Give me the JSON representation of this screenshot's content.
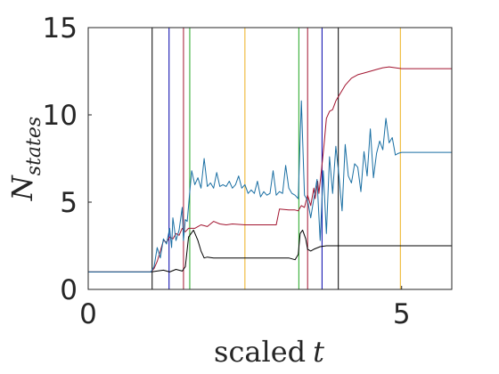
{
  "chart_data": {
    "type": "line",
    "title": "",
    "xlabel": "scaled t",
    "xlabel_parts": {
      "text": "scaled",
      "symbol": "t"
    },
    "ylabel": "N_states",
    "ylabel_parts": {
      "symbol": "N",
      "subscript": "states"
    },
    "xlim": [
      0,
      5.8
    ],
    "ylim": [
      0,
      15
    ],
    "xticks": [
      0,
      5
    ],
    "xtick_labels": [
      "0",
      "5"
    ],
    "yticks": [
      0,
      5,
      10,
      15
    ],
    "ytick_labels": [
      "0",
      "5",
      "10",
      "15"
    ],
    "grid": false,
    "legend": "none",
    "vertical_lines": [
      {
        "x": 1.02,
        "color": "#000000"
      },
      {
        "x": 1.29,
        "color": "#0000aa"
      },
      {
        "x": 1.52,
        "color": "#a2142f"
      },
      {
        "x": 1.62,
        "color": "#21a521"
      },
      {
        "x": 2.5,
        "color": "#edb120"
      },
      {
        "x": 3.36,
        "color": "#21a521"
      },
      {
        "x": 3.5,
        "color": "#a2142f"
      },
      {
        "x": 3.73,
        "color": "#0000aa"
      },
      {
        "x": 3.99,
        "color": "#000000"
      },
      {
        "x": 4.98,
        "color": "#edb120"
      }
    ],
    "series": [
      {
        "color": "#000000",
        "x": [
          0,
          1.0,
          1.1,
          1.2,
          1.3,
          1.4,
          1.5,
          1.55,
          1.6,
          1.68,
          1.75,
          1.8,
          1.85,
          1.9,
          2.0,
          2.5,
          3.0,
          3.2,
          3.3,
          3.35,
          3.38,
          3.42,
          3.47,
          3.5,
          3.55,
          3.6,
          3.7,
          3.8,
          3.9,
          4.0,
          4.5,
          5.0,
          5.8
        ],
        "y": [
          1,
          1,
          1.05,
          1.1,
          1.0,
          1.15,
          1.05,
          1.3,
          3.0,
          3.4,
          2.8,
          2.2,
          1.8,
          1.85,
          1.8,
          1.8,
          1.8,
          1.8,
          1.7,
          2.0,
          3.2,
          3.4,
          2.9,
          2.3,
          2.2,
          2.3,
          2.45,
          2.5,
          2.5,
          2.5,
          2.5,
          2.5,
          2.5
        ]
      },
      {
        "color": "#a2142f",
        "x": [
          0,
          1.0,
          1.05,
          1.1,
          1.15,
          1.2,
          1.25,
          1.3,
          1.35,
          1.4,
          1.45,
          1.5,
          1.55,
          1.6,
          1.7,
          1.8,
          1.9,
          2.0,
          2.1,
          2.2,
          2.3,
          2.5,
          2.7,
          2.9,
          3.0,
          3.05,
          3.2,
          3.3,
          3.35,
          3.4,
          3.45,
          3.5,
          3.55,
          3.6,
          3.62,
          3.66,
          3.68,
          3.72,
          3.76,
          3.8,
          3.85,
          3.9,
          3.95,
          4.0,
          4.05,
          4.1,
          4.2,
          4.3,
          4.4,
          4.5,
          4.6,
          4.7,
          4.8,
          4.9,
          5.0,
          5.8
        ],
        "y": [
          1,
          1,
          1.2,
          1.6,
          2.2,
          2.8,
          2.7,
          3.0,
          2.9,
          3.2,
          3.1,
          3.5,
          3.3,
          3.5,
          3.5,
          3.7,
          3.6,
          3.9,
          3.75,
          3.7,
          3.75,
          3.7,
          3.7,
          3.7,
          3.7,
          4.6,
          4.55,
          4.55,
          4.5,
          4.8,
          4.7,
          5.4,
          4.8,
          5.8,
          5.2,
          6.2,
          5.5,
          6.8,
          8.2,
          9.8,
          10.2,
          10.3,
          10.8,
          11.1,
          11.4,
          11.7,
          12.1,
          12.3,
          12.4,
          12.5,
          12.6,
          12.7,
          12.75,
          12.7,
          12.65,
          12.65
        ]
      },
      {
        "color": "#1a6fa3",
        "x": [
          0,
          1.0,
          1.05,
          1.1,
          1.15,
          1.2,
          1.25,
          1.3,
          1.33,
          1.35,
          1.4,
          1.45,
          1.5,
          1.52,
          1.55,
          1.58,
          1.62,
          1.65,
          1.7,
          1.75,
          1.8,
          1.85,
          1.9,
          1.95,
          2.0,
          2.05,
          2.1,
          2.15,
          2.2,
          2.25,
          2.3,
          2.35,
          2.4,
          2.45,
          2.5,
          2.55,
          2.6,
          2.65,
          2.7,
          2.75,
          2.8,
          2.85,
          2.9,
          2.95,
          3.0,
          3.05,
          3.1,
          3.15,
          3.2,
          3.25,
          3.3,
          3.35,
          3.4,
          3.45,
          3.5,
          3.55,
          3.6,
          3.65,
          3.7,
          3.75,
          3.8,
          3.85,
          3.9,
          3.95,
          4.0,
          4.05,
          4.1,
          4.15,
          4.2,
          4.25,
          4.3,
          4.35,
          4.4,
          4.45,
          4.5,
          4.55,
          4.6,
          4.65,
          4.7,
          4.75,
          4.8,
          4.85,
          4.9,
          4.95,
          5.0,
          5.8
        ],
        "y": [
          1,
          1,
          1.3,
          2.4,
          1.8,
          2.9,
          2.6,
          3.5,
          2.4,
          4.1,
          2.8,
          3.4,
          4.7,
          2.8,
          4.0,
          3.9,
          5.6,
          6.8,
          6.0,
          6.4,
          5.8,
          7.5,
          5.9,
          6.1,
          5.8,
          6.7,
          5.9,
          6.0,
          5.9,
          6.2,
          5.8,
          6.0,
          6.5,
          5.8,
          6.0,
          5.5,
          5.7,
          5.5,
          6.2,
          5.3,
          5.6,
          5.4,
          5.5,
          6.8,
          5.4,
          5.6,
          5.5,
          7.1,
          5.8,
          5.5,
          5.4,
          5.2,
          10.8,
          5.4,
          5.1,
          4.1,
          5.2,
          6.3,
          2.8,
          6.8,
          3.2,
          7.6,
          5.5,
          8.2,
          6.5,
          4.5,
          8.3,
          6.5,
          6.1,
          7.2,
          7.0,
          5.6,
          7.9,
          6.5,
          9.2,
          6.4,
          7.8,
          8.5,
          8.0,
          9.8,
          8.4,
          8.7,
          7.7,
          7.8,
          7.85,
          7.85
        ]
      }
    ]
  }
}
